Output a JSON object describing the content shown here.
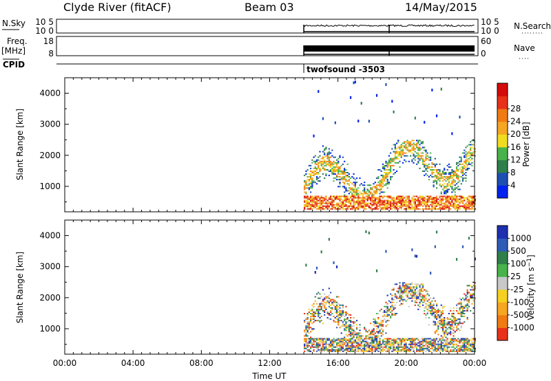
{
  "header": {
    "station": "Clyde River (fitACF)",
    "beam": "Beam 03",
    "date": "14/May/2015"
  },
  "strips": {
    "nsky": {
      "left_label": "N.Sky",
      "left_ticks": [
        "10^5",
        "10^0"
      ],
      "right_ticks": [
        "10^5",
        "10^0"
      ],
      "right_label": "N.Search"
    },
    "freq": {
      "left_label": "Freq.",
      "left_unit": "[MHz]",
      "left_ticks": [
        "18",
        "8"
      ],
      "right_ticks": [
        "60",
        "0"
      ],
      "right_label": "Nave"
    },
    "cpid": {
      "label": "CPID",
      "program": "twofsound -3503"
    },
    "data_start_time": "14:00",
    "program_change_time": "19:00"
  },
  "chart_data": [
    {
      "type": "heatmap",
      "title": "",
      "xlabel": "",
      "ylabel": "Slant Range [km]",
      "x_range": [
        "00:00",
        "24:00"
      ],
      "ylim": [
        180,
        4500
      ],
      "y_ticks": [
        "1000",
        "2000",
        "3000",
        "4000"
      ],
      "colorbar": {
        "label": "Power [dB]",
        "ticks": [
          "4",
          "8",
          "12",
          "16",
          "20",
          "24",
          "28"
        ],
        "colors": [
          "#0022ee",
          "#1e4fb3",
          "#2f7f4a",
          "#48b34a",
          "#f0dc20",
          "#f5a623",
          "#f07a14",
          "#e8311a",
          "#d40b0b"
        ]
      }
    },
    {
      "type": "heatmap",
      "title": "",
      "xlabel": "Time UT",
      "ylabel": "Slant Range [km]",
      "x_range": [
        "00:00",
        "24:00"
      ],
      "x_ticks": [
        "00:00",
        "04:00",
        "08:00",
        "12:00",
        "16:00",
        "20:00",
        "00:00"
      ],
      "ylim": [
        180,
        4500
      ],
      "y_ticks": [
        "1000",
        "2000",
        "3000",
        "4000"
      ],
      "colorbar": {
        "label": "Velocity [m s^-1]",
        "ticks": [
          "1000",
          "500",
          "100",
          "25",
          "-25",
          "-100",
          "-500",
          "-1000"
        ],
        "colors": [
          "#1e2fb0",
          "#2e5bb8",
          "#2f7f4a",
          "#48b34a",
          "#c8c8c8",
          "#f5d020",
          "#f5a623",
          "#f07a14",
          "#e8311a"
        ]
      }
    }
  ]
}
